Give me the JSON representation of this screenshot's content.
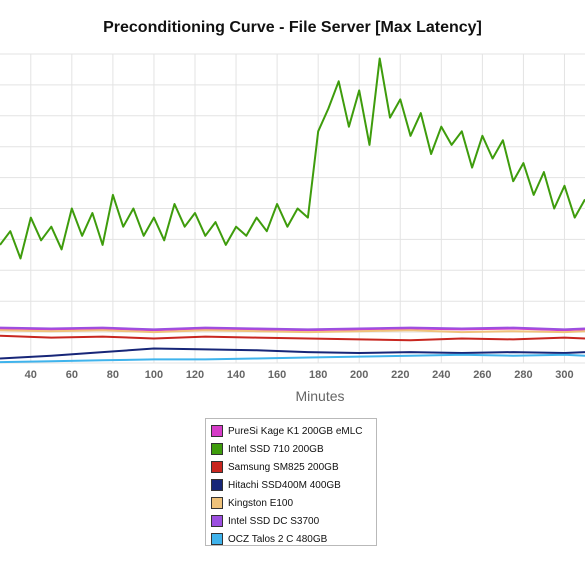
{
  "chart_data": {
    "type": "line",
    "title": "Preconditioning Curve - File Server [Max Latency]",
    "xlabel": "Minutes",
    "ylabel": "",
    "xlim": [
      25,
      310
    ],
    "ylim": [
      0,
      340
    ],
    "x_ticks": [
      40,
      60,
      80,
      100,
      120,
      140,
      160,
      180,
      200,
      220,
      240,
      260,
      280,
      300
    ],
    "grid": true,
    "legend_position": "bottom-center",
    "series": [
      {
        "name": "PureSi Kage K1 200GB eMLC",
        "color": "#d63cc8",
        "x": [
          25,
          50,
          75,
          100,
          125,
          150,
          175,
          200,
          225,
          250,
          275,
          300,
          310
        ],
        "y": [
          38,
          37,
          38,
          36,
          38,
          37,
          36,
          37,
          38,
          37,
          38,
          36,
          37
        ]
      },
      {
        "name": "Intel SSD 710 200GB",
        "color": "#3e9c0c",
        "x": [
          25,
          30,
          35,
          40,
          45,
          50,
          55,
          60,
          65,
          70,
          75,
          80,
          85,
          90,
          95,
          100,
          105,
          110,
          115,
          120,
          125,
          130,
          135,
          140,
          145,
          150,
          155,
          160,
          165,
          170,
          175,
          180,
          185,
          190,
          195,
          200,
          205,
          210,
          215,
          220,
          225,
          230,
          235,
          240,
          245,
          250,
          255,
          260,
          265,
          270,
          275,
          280,
          285,
          290,
          295,
          300,
          305,
          310
        ],
        "y": [
          130,
          145,
          115,
          160,
          135,
          150,
          125,
          170,
          140,
          165,
          130,
          185,
          150,
          170,
          140,
          160,
          135,
          175,
          150,
          165,
          140,
          155,
          130,
          150,
          140,
          160,
          145,
          175,
          150,
          170,
          160,
          255,
          280,
          310,
          260,
          300,
          240,
          335,
          270,
          290,
          250,
          275,
          230,
          260,
          240,
          255,
          215,
          250,
          225,
          245,
          200,
          220,
          185,
          210,
          170,
          195,
          160,
          180
        ]
      },
      {
        "name": "Samsung SM825 200GB",
        "color": "#c8261f",
        "x": [
          25,
          50,
          75,
          100,
          125,
          150,
          175,
          200,
          225,
          250,
          275,
          300,
          310
        ],
        "y": [
          30,
          28,
          29,
          27,
          29,
          28,
          27,
          26,
          25,
          27,
          26,
          28,
          27
        ]
      },
      {
        "name": "Hitachi SSD400M 400GB",
        "color": "#172678",
        "x": [
          25,
          50,
          75,
          100,
          125,
          150,
          175,
          200,
          225,
          250,
          275,
          300,
          310
        ],
        "y": [
          5,
          8,
          12,
          16,
          15,
          14,
          12,
          11,
          12,
          11,
          12,
          11,
          12
        ]
      },
      {
        "name": "Kingston E100",
        "color": "#efc27a",
        "x": [
          25,
          50,
          75,
          100,
          125,
          150,
          175,
          200,
          225,
          250,
          275,
          300,
          310
        ],
        "y": [
          36,
          35,
          36,
          34,
          36,
          35,
          34,
          35,
          36,
          34,
          35,
          34,
          35
        ]
      },
      {
        "name": "Intel SSD DC S3700",
        "color": "#9c4fe0",
        "x": [
          25,
          50,
          75,
          100,
          125,
          150,
          175,
          200,
          225,
          250,
          275,
          300,
          310
        ],
        "y": [
          39,
          38,
          39,
          37,
          39,
          38,
          37,
          38,
          39,
          38,
          39,
          37,
          38
        ]
      },
      {
        "name": "OCZ Talos 2 C 480GB",
        "color": "#3fb3ec",
        "x": [
          25,
          50,
          75,
          100,
          125,
          150,
          175,
          200,
          225,
          250,
          275,
          300,
          310
        ],
        "y": [
          1,
          2,
          3,
          4,
          4,
          5,
          6,
          7,
          8,
          9,
          8,
          9,
          8
        ]
      }
    ]
  }
}
